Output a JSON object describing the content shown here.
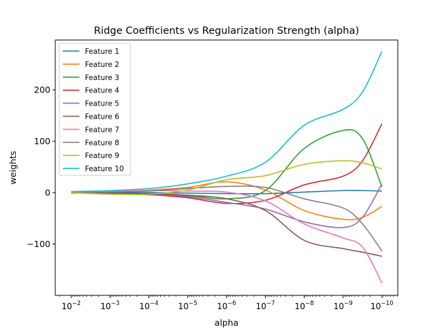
{
  "chart_data": {
    "type": "line",
    "title": "Ridge Coefficients vs Regularization Strength (alpha)",
    "xlabel": "alpha",
    "ylabel": "weights",
    "xscale": "log",
    "x_reversed": true,
    "xlim": [
      0.0257,
      3.9e-11
    ],
    "ylim": [
      -200,
      297
    ],
    "xticks": [
      0.01,
      0.001,
      0.0001,
      1e-05,
      1e-06,
      1e-07,
      1e-08,
      1e-09,
      1e-10
    ],
    "xtick_labels": [
      {
        "base": "10",
        "exp": "−2"
      },
      {
        "base": "10",
        "exp": "−3"
      },
      {
        "base": "10",
        "exp": "−4"
      },
      {
        "base": "10",
        "exp": "−5"
      },
      {
        "base": "10",
        "exp": "−6"
      },
      {
        "base": "10",
        "exp": "−7"
      },
      {
        "base": "10",
        "exp": "−8"
      },
      {
        "base": "10",
        "exp": "−9"
      },
      {
        "base": "10",
        "exp": "−10"
      }
    ],
    "yticks": [
      -100,
      0,
      100,
      200
    ],
    "ytick_labels": [
      "−100",
      "0",
      "100",
      "200"
    ],
    "grid": false,
    "legend_placement": "upper-left",
    "x": [
      0.01,
      0.001,
      0.0001,
      1e-05,
      1e-06,
      1e-07,
      1e-08,
      1e-09,
      3.16e-10,
      1e-10
    ],
    "series": [
      {
        "name": "Feature 1",
        "color": "#1f77b4",
        "values": [
          -1,
          0,
          0,
          -1,
          -2,
          -2,
          1,
          4,
          4,
          3
        ]
      },
      {
        "name": "Feature 2",
        "color": "#ff7f0e",
        "values": [
          0,
          2,
          5,
          10,
          21,
          5,
          -35,
          -52,
          -48,
          -27
        ]
      },
      {
        "name": "Feature 3",
        "color": "#2ca02c",
        "values": [
          0,
          -3,
          -4,
          -6,
          -12,
          4,
          86,
          121,
          105,
          11
        ]
      },
      {
        "name": "Feature 4",
        "color": "#d62728",
        "values": [
          0,
          -1,
          -4,
          -10,
          -21,
          -15,
          15,
          32,
          62,
          134
        ]
      },
      {
        "name": "Feature 5",
        "color": "#9467bd",
        "values": [
          0,
          -1,
          -3,
          -8,
          -19,
          -32,
          -57,
          -68,
          -48,
          17
        ]
      },
      {
        "name": "Feature 6",
        "color": "#8c564b",
        "values": [
          0,
          -1,
          -2,
          -5,
          -12,
          -35,
          -93,
          -109,
          -116,
          -124
        ]
      },
      {
        "name": "Feature 7",
        "color": "#e377c2",
        "values": [
          2,
          3,
          4,
          3,
          1,
          -16,
          -61,
          -88,
          -106,
          -176
        ]
      },
      {
        "name": "Feature 8",
        "color": "#7f7f7f",
        "values": [
          0,
          1,
          3,
          8,
          12,
          10,
          -12,
          -30,
          -61,
          -114
        ]
      },
      {
        "name": "Feature 9",
        "color": "#bcbd22",
        "values": [
          0,
          -3,
          -3,
          5,
          25,
          33,
          55,
          62,
          58,
          46
        ]
      },
      {
        "name": "Feature 10",
        "color": "#17becf",
        "values": [
          2,
          4,
          8,
          17,
          32,
          59,
          131,
          162,
          196,
          275
        ]
      }
    ]
  }
}
